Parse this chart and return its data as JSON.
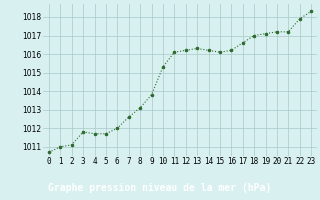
{
  "hours": [
    0,
    1,
    2,
    3,
    4,
    5,
    6,
    7,
    8,
    9,
    10,
    11,
    12,
    13,
    14,
    15,
    16,
    17,
    18,
    19,
    20,
    21,
    22,
    23
  ],
  "pressure": [
    1010.7,
    1011.0,
    1011.1,
    1011.8,
    1011.7,
    1011.7,
    1012.0,
    1012.6,
    1013.1,
    1013.8,
    1015.3,
    1016.1,
    1016.2,
    1016.3,
    1016.2,
    1016.1,
    1016.2,
    1016.6,
    1017.0,
    1017.1,
    1017.2,
    1017.2,
    1017.9,
    1018.3
  ],
  "line_color": "#2d6a2d",
  "marker": ".",
  "bg_color": "#d8f0f0",
  "grid_color": "#a8c8c8",
  "separator_color": "#2d6a2d",
  "xlabel": "Graphe pression niveau de la mer (hPa)",
  "ylim": [
    1010.5,
    1018.7
  ],
  "yticks": [
    1011,
    1012,
    1013,
    1014,
    1015,
    1016,
    1017,
    1018
  ],
  "xticks": [
    0,
    1,
    2,
    3,
    4,
    5,
    6,
    7,
    8,
    9,
    10,
    11,
    12,
    13,
    14,
    15,
    16,
    17,
    18,
    19,
    20,
    21,
    22,
    23
  ],
  "tick_label_fontsize": 5.5,
  "xlabel_fontsize": 7.0,
  "line_width": 0.8,
  "marker_size": 3.5,
  "bottom_bar_color": "#2d6a2d",
  "bottom_label_bg": "#2d6a2d",
  "bottom_text_color": "#ffffff"
}
